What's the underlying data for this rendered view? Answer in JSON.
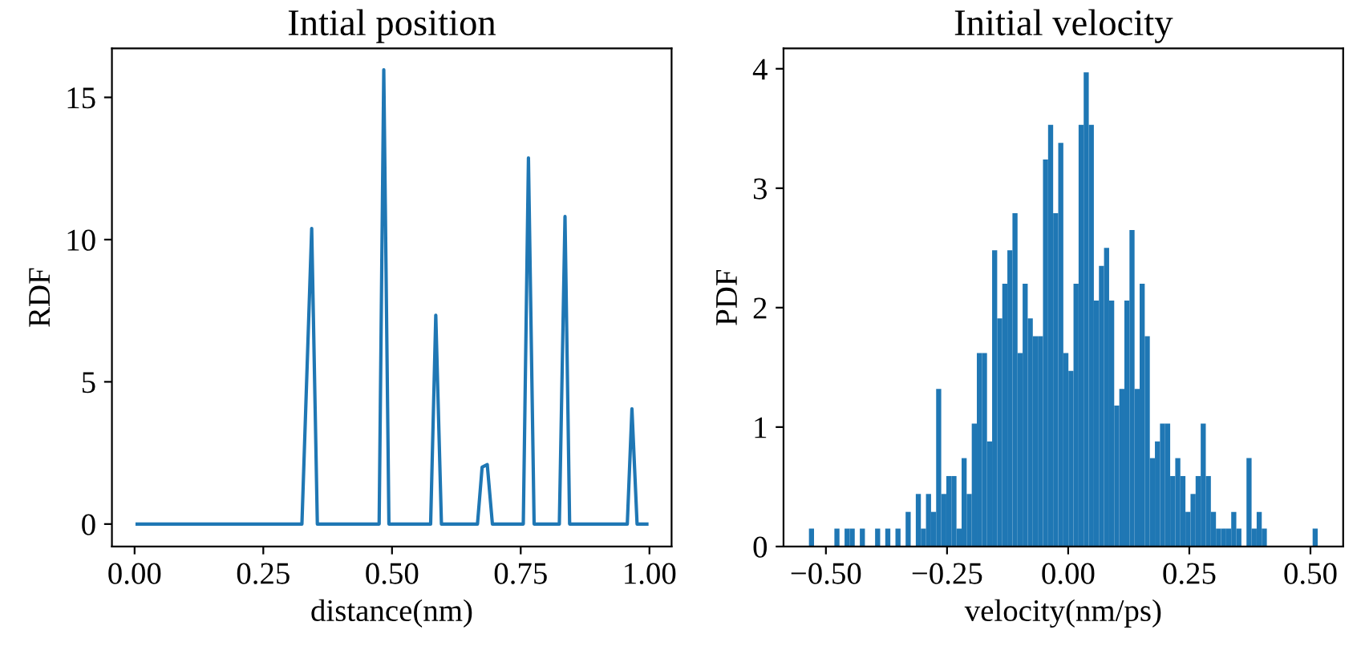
{
  "chart_data": [
    {
      "type": "line",
      "title": "Intial position",
      "xlabel": "distance(nm)",
      "ylabel": "RDF",
      "x": [
        0.005,
        0.325,
        0.344,
        0.355,
        0.475,
        0.484,
        0.494,
        0.575,
        0.585,
        0.596,
        0.666,
        0.675,
        0.685,
        0.695,
        0.755,
        0.765,
        0.776,
        0.825,
        0.836,
        0.845,
        0.957,
        0.966,
        0.976,
        0.995
      ],
      "series": [
        {
          "color": "#1f77b4",
          "values": [
            0,
            0,
            10.39,
            0,
            0,
            15.97,
            0,
            0,
            7.34,
            0,
            0,
            2.0,
            2.09,
            0,
            0,
            12.87,
            0,
            0,
            10.81,
            0,
            0,
            4.05,
            0,
            0
          ]
        }
      ],
      "xlim": [
        -0.044,
        1.043
      ],
      "ylim": [
        -0.79,
        16.72
      ],
      "xticks": [
        {
          "value": 0,
          "label": "0.00"
        },
        {
          "value": 0.25,
          "label": "0.25"
        },
        {
          "value": 0.5,
          "label": "0.50"
        },
        {
          "value": 0.75,
          "label": "0.75"
        },
        {
          "value": 1,
          "label": "1.00"
        }
      ],
      "yticks": [
        0,
        5,
        10,
        15
      ],
      "grid": false,
      "legend": false
    },
    {
      "type": "histogram",
      "title": "Initial velocity",
      "xlabel": "velocity(nm/ps)",
      "ylabel": "PDF",
      "color": "#1f77b4",
      "bins": [
        -0.535,
        -0.5245,
        -0.514,
        -0.5035,
        -0.493,
        -0.4825,
        -0.472,
        -0.4615,
        -0.451,
        -0.4405,
        -0.43,
        -0.4195,
        -0.409,
        -0.3985,
        -0.388,
        -0.3775,
        -0.367,
        -0.3565,
        -0.346,
        -0.3355,
        -0.325,
        -0.3145,
        -0.304,
        -0.2935,
        -0.283,
        -0.2725,
        -0.262,
        -0.2515,
        -0.241,
        -0.2305,
        -0.22,
        -0.2095,
        -0.199,
        -0.1885,
        -0.178,
        -0.1675,
        -0.157,
        -0.1465,
        -0.136,
        -0.1255,
        -0.115,
        -0.1045,
        -0.094,
        -0.0835,
        -0.073,
        -0.0625,
        -0.052,
        -0.0415,
        -0.031,
        -0.0205,
        -0.01,
        0.0005,
        0.011,
        0.0215,
        0.032,
        0.0425,
        0.053,
        0.0635,
        0.074,
        0.0845,
        0.095,
        0.1055,
        0.116,
        0.1265,
        0.137,
        0.1475,
        0.158,
        0.1685,
        0.179,
        0.1895,
        0.2,
        0.2105,
        0.221,
        0.2315,
        0.242,
        0.2525,
        0.263,
        0.2735,
        0.284,
        0.2945,
        0.305,
        0.3155,
        0.326,
        0.3365,
        0.347,
        0.3575,
        0.368,
        0.3785,
        0.389,
        0.3995,
        0.41,
        0.4205,
        0.431,
        0.4415,
        0.452,
        0.4625,
        0.473,
        0.4835,
        0.494,
        0.5045,
        0.515
      ],
      "values": [
        0.15,
        0,
        0,
        0,
        0,
        0.15,
        0,
        0.15,
        0.15,
        0,
        0.15,
        0,
        0,
        0.15,
        0,
        0.15,
        0,
        0.15,
        0,
        0.29,
        0,
        0.44,
        0.15,
        0.44,
        0.29,
        1.32,
        0.44,
        0.59,
        0.59,
        0.15,
        0.74,
        0.44,
        1.03,
        1.62,
        1.62,
        0.88,
        2.48,
        1.91,
        2.2,
        2.48,
        2.79,
        1.62,
        2.2,
        1.91,
        1.76,
        1.76,
        3.24,
        3.53,
        2.79,
        3.38,
        1.62,
        1.47,
        2.2,
        3.53,
        3.97,
        3.53,
        2.06,
        2.35,
        2.5,
        2.06,
        1.18,
        1.32,
        2.06,
        2.65,
        1.32,
        2.2,
        1.76,
        0.74,
        0.88,
        1.03,
        1.03,
        0.59,
        0.74,
        0.59,
        0.29,
        0.44,
        0.59,
        1.03,
        0.59,
        0.29,
        0.15,
        0.15,
        0.15,
        0.29,
        0.15,
        0,
        0.74,
        0.15,
        0.29,
        0.15,
        0,
        0,
        0,
        0,
        0,
        0,
        0,
        0,
        0,
        0.15
      ],
      "xlim": [
        -0.5875,
        0.5675
      ],
      "ylim": [
        0,
        4.17
      ],
      "xticks": [
        {
          "value": -0.5,
          "label": "−0.50"
        },
        {
          "value": -0.25,
          "label": "−0.25"
        },
        {
          "value": 0,
          "label": "0.00"
        },
        {
          "value": 0.25,
          "label": "0.25"
        },
        {
          "value": 0.5,
          "label": "0.50"
        }
      ],
      "yticks": [
        0,
        1,
        2,
        3,
        4
      ],
      "grid": false,
      "legend": false
    }
  ]
}
